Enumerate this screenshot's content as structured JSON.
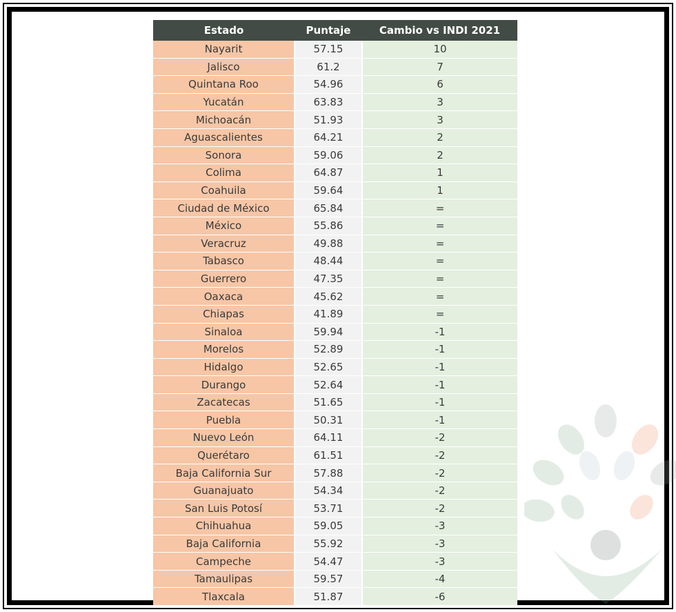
{
  "table": {
    "headers": [
      "Estado",
      "Puntaje",
      "Cambio vs INDI 2021"
    ],
    "rows": [
      {
        "estado": "Nayarit",
        "puntaje": "57.15",
        "cambio": "10"
      },
      {
        "estado": "Jalisco",
        "puntaje": "61.2",
        "cambio": "7"
      },
      {
        "estado": "Quintana Roo",
        "puntaje": "54.96",
        "cambio": "6"
      },
      {
        "estado": "Yucatán",
        "puntaje": "63.83",
        "cambio": "3"
      },
      {
        "estado": "Michoacán",
        "puntaje": "51.93",
        "cambio": "3"
      },
      {
        "estado": "Aguascalientes",
        "puntaje": "64.21",
        "cambio": "2"
      },
      {
        "estado": "Sonora",
        "puntaje": "59.06",
        "cambio": "2"
      },
      {
        "estado": "Colima",
        "puntaje": "64.87",
        "cambio": "1"
      },
      {
        "estado": "Coahuila",
        "puntaje": "59.64",
        "cambio": "1"
      },
      {
        "estado": "Ciudad de México",
        "puntaje": "65.84",
        "cambio": "="
      },
      {
        "estado": "México",
        "puntaje": "55.86",
        "cambio": "="
      },
      {
        "estado": "Veracruz",
        "puntaje": "49.88",
        "cambio": "="
      },
      {
        "estado": "Tabasco",
        "puntaje": "48.44",
        "cambio": "="
      },
      {
        "estado": "Guerrero",
        "puntaje": "47.35",
        "cambio": "="
      },
      {
        "estado": "Oaxaca",
        "puntaje": "45.62",
        "cambio": "="
      },
      {
        "estado": "Chiapas",
        "puntaje": "41.89",
        "cambio": "="
      },
      {
        "estado": "Sinaloa",
        "puntaje": "59.94",
        "cambio": "-1"
      },
      {
        "estado": "Morelos",
        "puntaje": "52.89",
        "cambio": "-1"
      },
      {
        "estado": "Hidalgo",
        "puntaje": "52.65",
        "cambio": "-1"
      },
      {
        "estado": "Durango",
        "puntaje": "52.64",
        "cambio": "-1"
      },
      {
        "estado": "Zacatecas",
        "puntaje": "51.65",
        "cambio": "-1"
      },
      {
        "estado": "Puebla",
        "puntaje": "50.31",
        "cambio": "-1"
      },
      {
        "estado": "Nuevo León",
        "puntaje": "64.11",
        "cambio": "-2"
      },
      {
        "estado": "Querétaro",
        "puntaje": "61.51",
        "cambio": "-2"
      },
      {
        "estado": "Baja California Sur",
        "puntaje": "57.88",
        "cambio": "-2"
      },
      {
        "estado": "Guanajuato",
        "puntaje": "54.34",
        "cambio": "-2"
      },
      {
        "estado": "San Luis Potosí",
        "puntaje": "53.71",
        "cambio": "-2"
      },
      {
        "estado": "Chihuahua",
        "puntaje": "59.05",
        "cambio": "-3"
      },
      {
        "estado": "Baja California",
        "puntaje": "55.92",
        "cambio": "-3"
      },
      {
        "estado": "Campeche",
        "puntaje": "54.47",
        "cambio": "-3"
      },
      {
        "estado": "Tamaulipas",
        "puntaje": "59.57",
        "cambio": "-4"
      },
      {
        "estado": "Tlaxcala",
        "puntaje": "51.87",
        "cambio": "-6"
      }
    ]
  },
  "colors": {
    "header_bg": "#434b47",
    "estado_bg": "#f6c6a6",
    "puntaje_bg": "#f2f2f2",
    "cambio_bg": "#e4efdf"
  },
  "decoration": {
    "icon": "leaf-tree-icon"
  }
}
